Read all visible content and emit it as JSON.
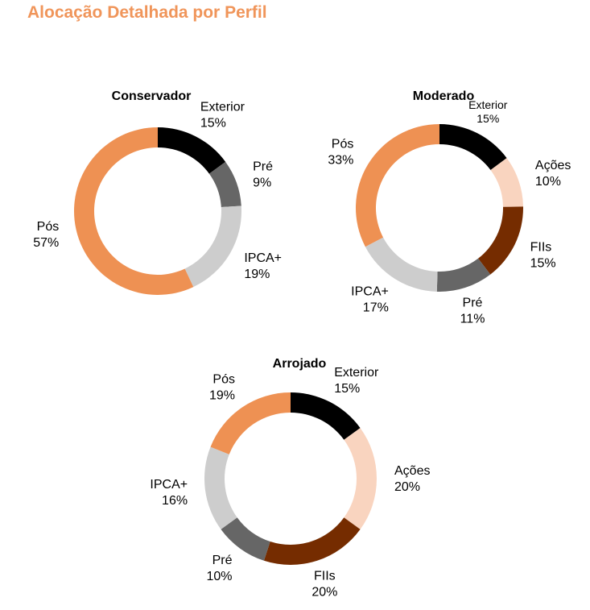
{
  "page": {
    "title": "Alocação Detalhada por Perfil"
  },
  "colors": {
    "Exterior": "#000000",
    "Pré": "#666666",
    "IPCA+": "#CDCDCD",
    "Pós": "#EE9153",
    "Ações": "#F9D4BF",
    "FIIs": "#752C00"
  },
  "chart_data": [
    {
      "type": "pie",
      "title": "Conservador",
      "labels": [
        "Exterior",
        "Pré",
        "IPCA+",
        "Pós"
      ],
      "values": [
        15,
        9,
        19,
        57
      ],
      "value_labels": [
        "15%",
        "9%",
        "19%",
        "57%"
      ]
    },
    {
      "type": "pie",
      "title": "Moderado",
      "labels": [
        "Exterior",
        "Ações",
        "FIIs",
        "Pré",
        "IPCA+",
        "Pós"
      ],
      "values": [
        15,
        10,
        15,
        11,
        17,
        33
      ],
      "value_labels": [
        "15%",
        "10%",
        "15%",
        "11%",
        "17%",
        "33%"
      ]
    },
    {
      "type": "pie",
      "title": "Arrojado",
      "labels": [
        "Exterior",
        "Ações",
        "FIIs",
        "Pré",
        "IPCA+",
        "Pós"
      ],
      "values": [
        15,
        20,
        20,
        10,
        16,
        19
      ],
      "value_labels": [
        "15%",
        "20%",
        "20%",
        "10%",
        "16%",
        "19%"
      ]
    }
  ]
}
